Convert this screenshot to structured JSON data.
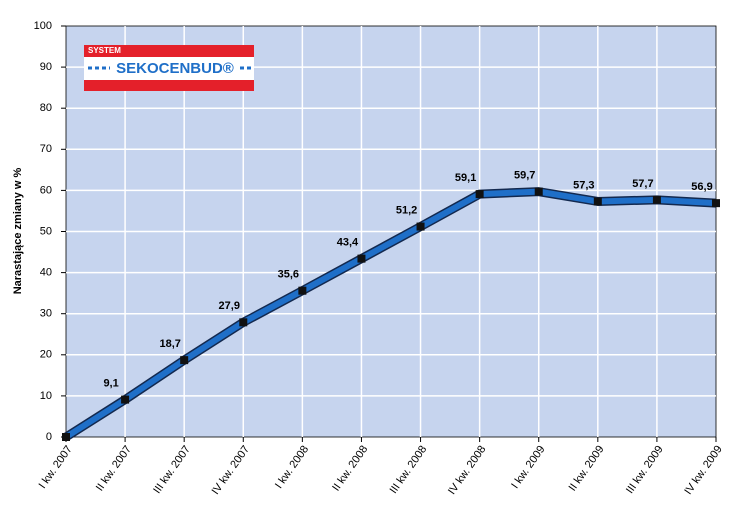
{
  "chart_data": {
    "type": "line",
    "y_label": "Narastające zmiany w %",
    "logo": {
      "system": "SYSTEM",
      "brand": "SEKOCENBUD®"
    },
    "categories": [
      "I kw. 2007",
      "II kw. 2007",
      "III kw. 2007",
      "IV kw. 2007",
      "I kw. 2008",
      "II kw. 2008",
      "III kw. 2008",
      "IV kw. 2008",
      "I kw. 2009",
      "II kw. 2009",
      "III kw. 2009",
      "IV kw. 2009"
    ],
    "series": [
      {
        "color": "#1f6fc8",
        "values": [
          0,
          9.1,
          18.7,
          27.9,
          35.6,
          43.4,
          51.2,
          59.1,
          59.7,
          57.3,
          57.7,
          56.9
        ],
        "value_labels": [
          null,
          "9,1",
          "18,7",
          "27,9",
          "35,6",
          "43,4",
          "51,2",
          "59,1",
          "59,7",
          "57,3",
          "57,7",
          "56,9"
        ]
      }
    ],
    "ylim": [
      0,
      100
    ],
    "yticks": [
      0,
      10,
      20,
      30,
      40,
      50,
      60,
      70,
      80,
      90,
      100
    ],
    "grid": true
  }
}
